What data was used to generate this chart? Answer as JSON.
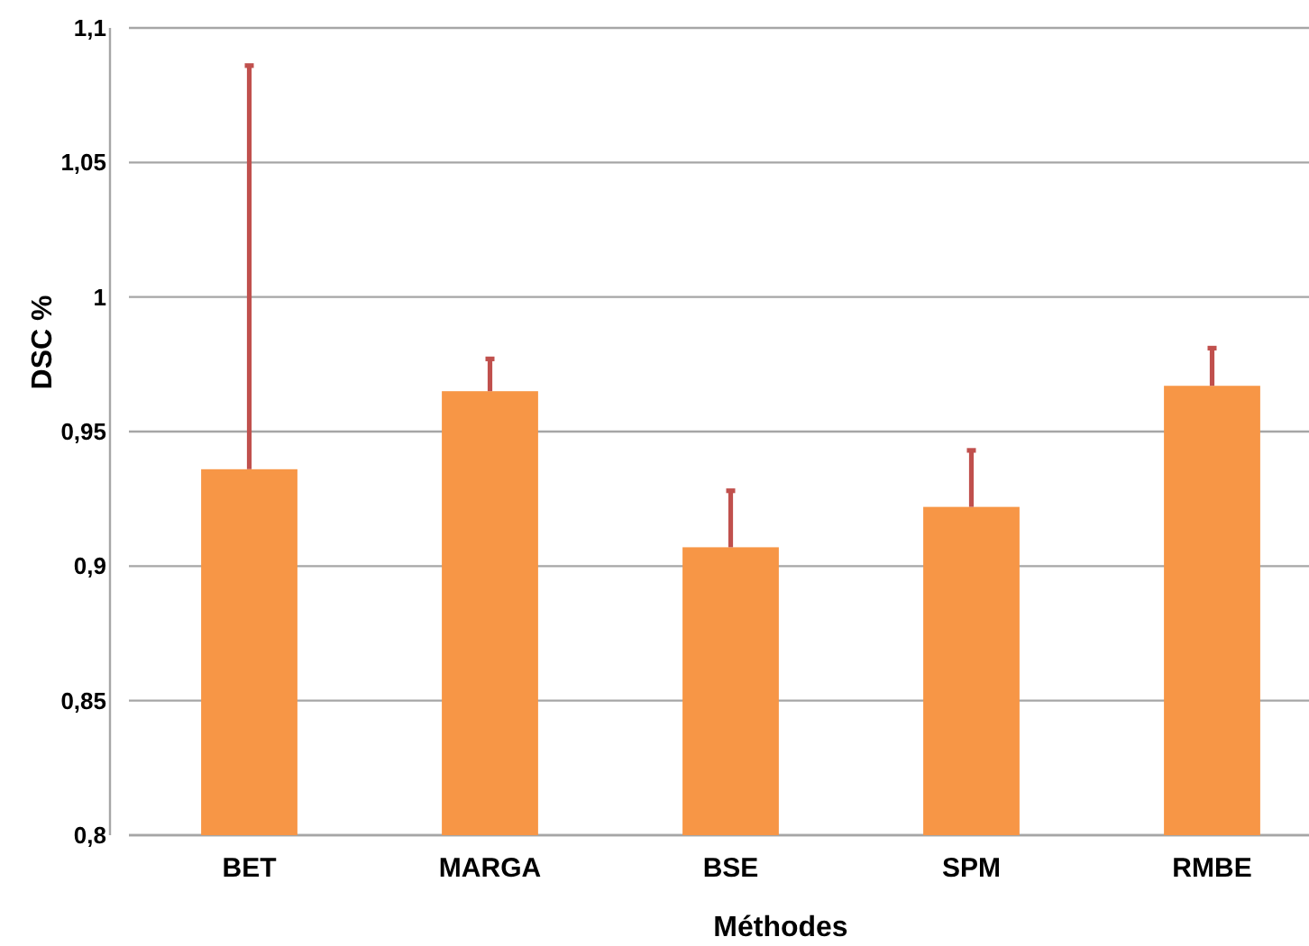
{
  "chart_data": {
    "type": "bar",
    "xlabel": "Méthodes",
    "ylabel": "DSC %",
    "categories": [
      "BET",
      "MARGA",
      "BSE",
      "SPM",
      "RMBE"
    ],
    "values": [
      0.936,
      0.965,
      0.907,
      0.922,
      0.967
    ],
    "errors": [
      [
        0.936,
        1.086
      ],
      [
        0.965,
        0.977
      ],
      [
        0.907,
        0.928
      ],
      [
        0.922,
        0.943
      ],
      [
        0.967,
        0.981
      ]
    ],
    "color": "#f79646",
    "ylim": [
      0.8,
      1.1
    ],
    "yticks": [
      {
        "value": 0.8,
        "label": "0,8"
      },
      {
        "value": 0.85,
        "label": "0,85"
      },
      {
        "value": 0.9,
        "label": "0,9"
      },
      {
        "value": 0.95,
        "label": "0,95"
      },
      1,
      {
        "value": 1.05,
        "label": "1,05"
      },
      {
        "value": 1.1,
        "label": "1,1"
      }
    ],
    "grid": "y"
  }
}
